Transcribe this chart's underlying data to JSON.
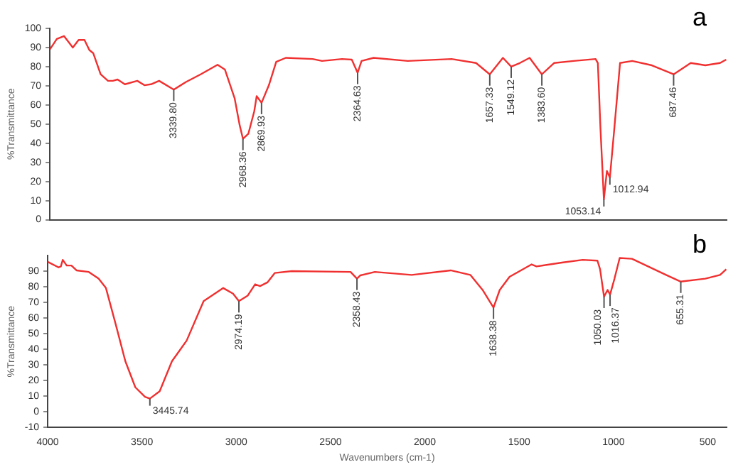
{
  "chart_data": [
    {
      "type": "line",
      "ylabel": "%Transmittance",
      "xlim": [
        4000,
        400
      ],
      "xticks": [
        4000,
        3500,
        3000,
        2500,
        2000,
        1500,
        1000,
        500
      ],
      "ylim": [
        0,
        100
      ],
      "yticks": [
        0,
        10,
        20,
        30,
        40,
        50,
        60,
        70,
        80,
        90,
        100
      ],
      "tick_labels": "y",
      "series": [
        {
          "color": "#f03030",
          "x": [
            4000,
            3963,
            3925,
            3878,
            3847,
            3816,
            3790,
            3769,
            3730,
            3691,
            3665,
            3640,
            3601,
            3535,
            3497,
            3458,
            3419,
            3341,
            3276,
            3198,
            3108,
            3069,
            3017,
            2991,
            2973,
            2944,
            2913,
            2900,
            2874,
            2835,
            2796,
            2745,
            2602,
            2552,
            2446,
            2394,
            2363,
            2342,
            2278,
            2096,
            1863,
            1733,
            1660,
            1590,
            1546,
            1500,
            1448,
            1383,
            1318,
            1214,
            1097,
            1085,
            1071,
            1053,
            1037,
            1021,
            998,
            967,
            902,
            798,
            682,
            591,
            513,
            435,
            402
          ],
          "values": [
            89,
            94.5,
            96,
            90,
            94,
            94,
            88.7,
            87,
            76,
            72.6,
            72.6,
            73.3,
            70.8,
            72.6,
            70.3,
            70.9,
            72.6,
            68,
            72,
            76,
            81,
            78.5,
            63.4,
            49.7,
            42.3,
            45,
            56.6,
            64.6,
            61.1,
            70.3,
            82.5,
            84.6,
            84,
            83,
            84,
            83.7,
            76.8,
            83,
            84.6,
            83,
            84,
            81.9,
            76,
            84.6,
            80,
            81.9,
            84.6,
            76,
            81.9,
            83,
            84,
            81.9,
            47.4,
            10.6,
            25.5,
            22,
            47,
            81.9,
            83,
            80.7,
            76,
            81.9,
            80.7,
            81.9,
            83.7
          ]
        }
      ],
      "annotations": [
        "a",
        {
          "text": "3339.80",
          "x": 3341,
          "y": 68
        },
        {
          "text": "2968.36",
          "x": 2973,
          "y": 42.3
        },
        {
          "text": "2869.93",
          "x": 2874,
          "y": 61.1
        },
        {
          "text": "2364.63",
          "x": 2363,
          "y": 76.8
        },
        {
          "text": "1657.33",
          "x": 1660,
          "y": 76
        },
        {
          "text": "1549.12",
          "x": 1546,
          "y": 80
        },
        {
          "text": "1383.60",
          "x": 1383,
          "y": 76
        },
        {
          "text": "1053.14",
          "x": 1053,
          "y": 10.6
        },
        {
          "text": "1012.94",
          "x": 1021,
          "y": 22
        },
        {
          "text": "687.46",
          "x": 682,
          "y": 76
        }
      ]
    },
    {
      "type": "line",
      "xlabel": "Wavenumbers (cm-1)",
      "ylabel": "%Transmittance",
      "xlim": [
        4000,
        400
      ],
      "xticks": [
        4000,
        3500,
        3000,
        2500,
        2000,
        1500,
        1000,
        500
      ],
      "ylim": [
        -10,
        100
      ],
      "yticks": [
        -10,
        0,
        10,
        20,
        30,
        40,
        50,
        60,
        70,
        80,
        90
      ],
      "series": [
        {
          "color": "#f03030",
          "x": [
            4000,
            3942,
            3930,
            3920,
            3899,
            3874,
            3847,
            3782,
            3730,
            3691,
            3640,
            3588,
            3535,
            3484,
            3458,
            3406,
            3341,
            3263,
            3173,
            3069,
            3017,
            2986,
            2939,
            2900,
            2874,
            2835,
            2796,
            2706,
            2394,
            2360,
            2342,
            2265,
            2070,
            1863,
            1759,
            1694,
            1636,
            1603,
            1551,
            1434,
            1408,
            1267,
            1163,
            1085,
            1071,
            1050,
            1031,
            1018,
            995,
            967,
            902,
            721,
            643,
            513,
            435,
            402
          ],
          "values": [
            96,
            92.4,
            93,
            97.2,
            93.6,
            93.6,
            90.5,
            89.5,
            85.2,
            79.2,
            56.4,
            32.4,
            15.7,
            9.6,
            8.5,
            13.2,
            32.4,
            45.6,
            70.8,
            79.2,
            75.6,
            70.8,
            74.4,
            81.6,
            80.4,
            82.8,
            88.8,
            90,
            89.5,
            85.2,
            87.3,
            89.5,
            87.6,
            90.5,
            87.6,
            78,
            66.7,
            78,
            86.4,
            94.3,
            93,
            95.6,
            97.2,
            96.7,
            91.2,
            73.7,
            78,
            75,
            85,
            98.4,
            97.9,
            87.6,
            83.3,
            85.2,
            87.6,
            91.2
          ]
        }
      ],
      "annotations": [
        "b",
        {
          "text": "3445.74",
          "x": 3458,
          "y": 8.5
        },
        {
          "text": "2974.19",
          "x": 2986,
          "y": 70.8
        },
        {
          "text": "2358.43",
          "x": 2360,
          "y": 85.2
        },
        {
          "text": "1638.38",
          "x": 1636,
          "y": 66.7
        },
        {
          "text": "1050.03",
          "x": 1050,
          "y": 73.7
        },
        {
          "text": "1016.37",
          "x": 1018,
          "y": 75
        },
        {
          "text": "655.31",
          "x": 643,
          "y": 83.3
        }
      ]
    }
  ]
}
